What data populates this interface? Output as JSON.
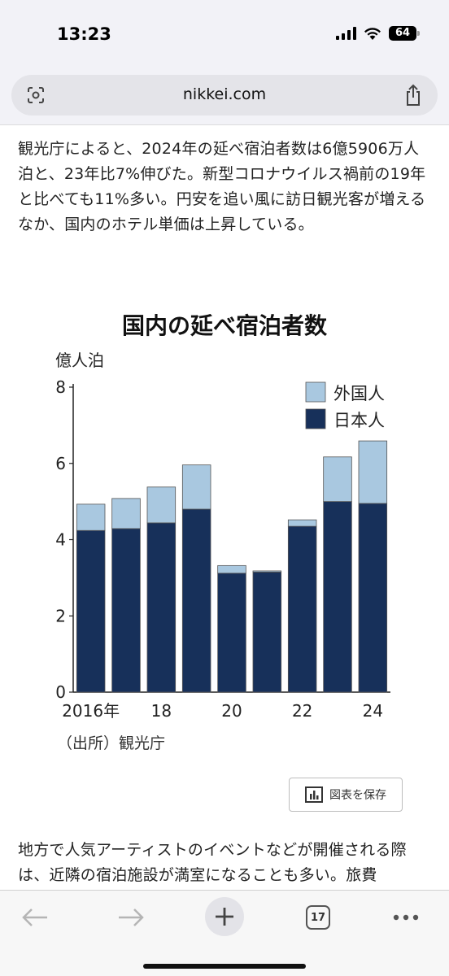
{
  "status": {
    "time": "13:23",
    "battery": "64"
  },
  "browser": {
    "url": "nikkei.com"
  },
  "article": {
    "paragraph1": "観光庁によると、2024年の延べ宿泊者数は6億5906万人泊と、23年比7%伸びた。新型コロナウイルス禍前の19年と比べても11%多い。円安を追い風に訪日観光客が増えるなか、国内のホテル単価は上昇している。",
    "paragraph2": "地方で人気アーティストのイベントなどが開催される際は、近隣の宿泊施設が満室になることも多い。旅費"
  },
  "chart_data": {
    "type": "bar",
    "stacked": true,
    "title": "国内の延べ宿泊者数",
    "ylabel": "億人泊",
    "xlabel": "",
    "source": "（出所）観光庁",
    "ylim": [
      0,
      8
    ],
    "yticks": [
      "0",
      "2",
      "4",
      "6",
      "8"
    ],
    "categories": [
      "2016",
      "2017",
      "2018",
      "2019",
      "2020",
      "2021",
      "2022",
      "2023",
      "2024"
    ],
    "xtick_labels": [
      {
        "index": 0,
        "label": "2016年"
      },
      {
        "index": 2,
        "label": "18"
      },
      {
        "index": 4,
        "label": "20"
      },
      {
        "index": 6,
        "label": "22"
      },
      {
        "index": 8,
        "label": "24"
      }
    ],
    "series": [
      {
        "name": "日本人",
        "color": "#17305a",
        "values": [
          4.24,
          4.29,
          4.44,
          4.8,
          3.12,
          3.15,
          4.35,
          5.0,
          4.95
        ]
      },
      {
        "name": "外国人",
        "color": "#a9c8e0",
        "values": [
          0.69,
          0.79,
          0.94,
          1.16,
          0.2,
          0.03,
          0.17,
          1.17,
          1.64
        ]
      }
    ],
    "legend": [
      "外国人",
      "日本人"
    ],
    "legend_position": "top-right",
    "grid": false
  },
  "save_button": {
    "label": "図表を保存"
  },
  "toolbar": {
    "tab_count": "17"
  }
}
